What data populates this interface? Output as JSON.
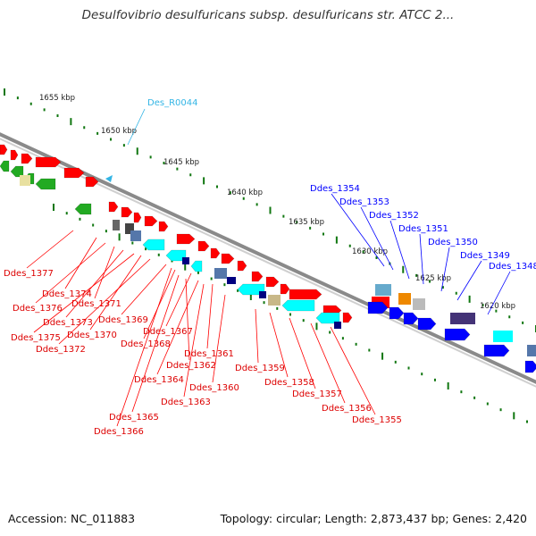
{
  "title": "Desulfovibrio desulfuricans subsp. desulfuricans str. ATCC 2...",
  "footer": {
    "accession": "Accession: NC_011883",
    "summary": "Topology: circular; Length: 2,873,437 bp; Genes: 2,420"
  },
  "colors": {
    "backbone": "#8a8a8a",
    "forward_genes": "#ff0000",
    "reverse_genes": "#0000ff",
    "rna": "#33b5e5",
    "cyan": "#00ffff",
    "green": "#22aa22",
    "ticks": "#117711"
  },
  "scale": {
    "unit": "kbp",
    "ticks": [
      {
        "label": "1655 kbp"
      },
      {
        "label": "1650 kbp"
      },
      {
        "label": "1645 kbp"
      },
      {
        "label": "1640 kbp"
      },
      {
        "label": "1635 kbp"
      },
      {
        "label": "1630 kbp"
      },
      {
        "label": "1625 kbp"
      },
      {
        "label": "1620 kbp"
      }
    ]
  },
  "labels_rna": [
    "Des_R0044"
  ],
  "labels_forward": [
    "Ddes_1354",
    "Ddes_1353",
    "Ddes_1352",
    "Ddes_1351",
    "Ddes_1350",
    "Ddes_1349",
    "Ddes_1348"
  ],
  "labels_reverse": [
    "Ddes_1377",
    "Ddes_1374",
    "Ddes_1376",
    "Ddes_1371",
    "Ddes_1373",
    "Ddes_1375",
    "Ddes_1370",
    "Ddes_1369",
    "Ddes_1372",
    "Ddes_1368",
    "Ddes_1367",
    "Ddes_1361",
    "Ddes_1362",
    "Ddes_1359",
    "Ddes_1364",
    "Ddes_1358",
    "Ddes_1360",
    "Ddes_1357",
    "Ddes_1363",
    "Ddes_1356",
    "Ddes_1365",
    "Ddes_1355",
    "Ddes_1366"
  ]
}
